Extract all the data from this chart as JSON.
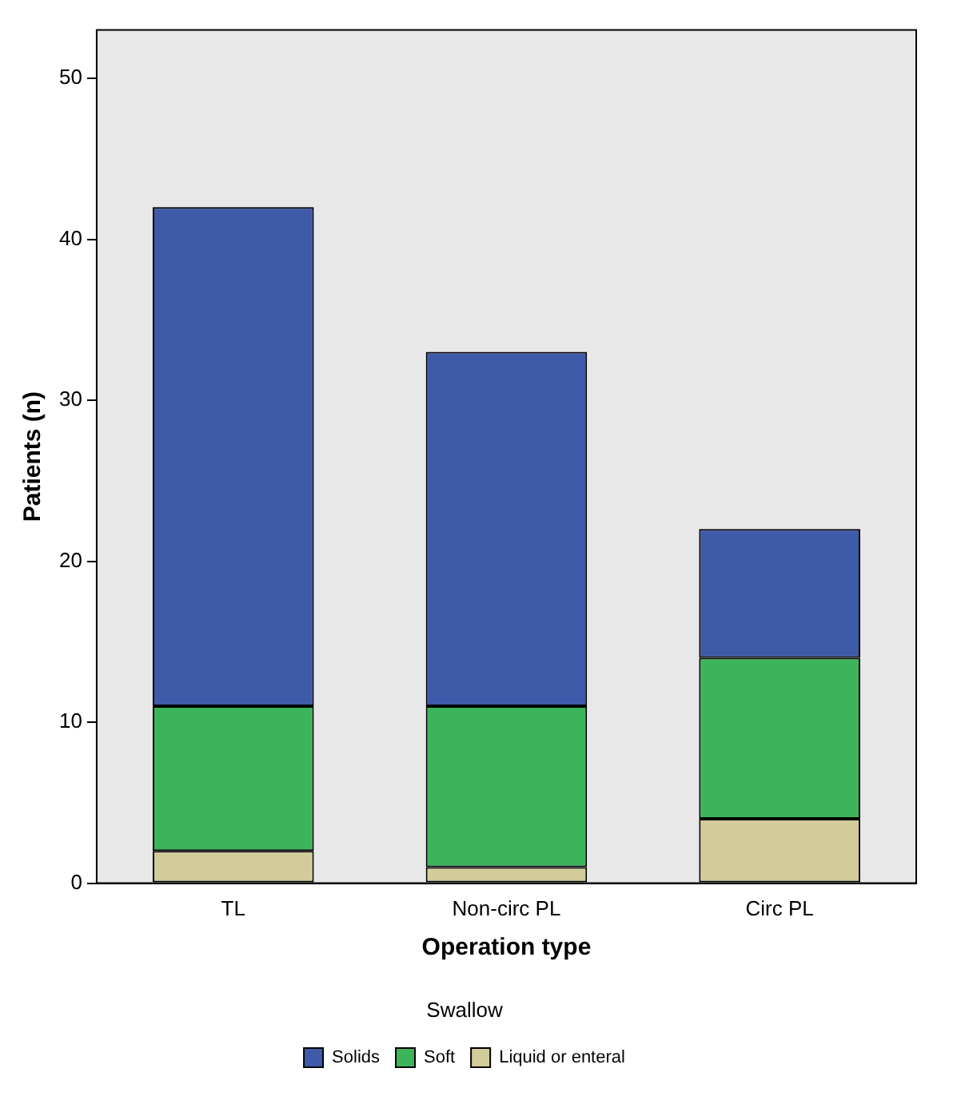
{
  "chart_data": {
    "type": "bar",
    "stacked": true,
    "xlabel": "Operation type",
    "ylabel": "Patients (n)",
    "legend_title": "Swallow",
    "legend": "bottom",
    "categories": [
      "TL",
      "Non-circ PL",
      "Circ PL"
    ],
    "series": [
      {
        "name": "Liquid or enteral",
        "color": "#d1cc9a",
        "values": [
          2,
          1,
          4
        ]
      },
      {
        "name": "Soft",
        "color": "#3cb55a",
        "values": [
          9,
          10,
          10
        ]
      },
      {
        "name": "Solids",
        "color": "#3f5aa8",
        "values": [
          31,
          22,
          8
        ]
      }
    ],
    "ylim": [
      0,
      53
    ],
    "yticks": [
      0,
      10,
      20,
      30,
      40,
      50
    ],
    "grid": false
  }
}
